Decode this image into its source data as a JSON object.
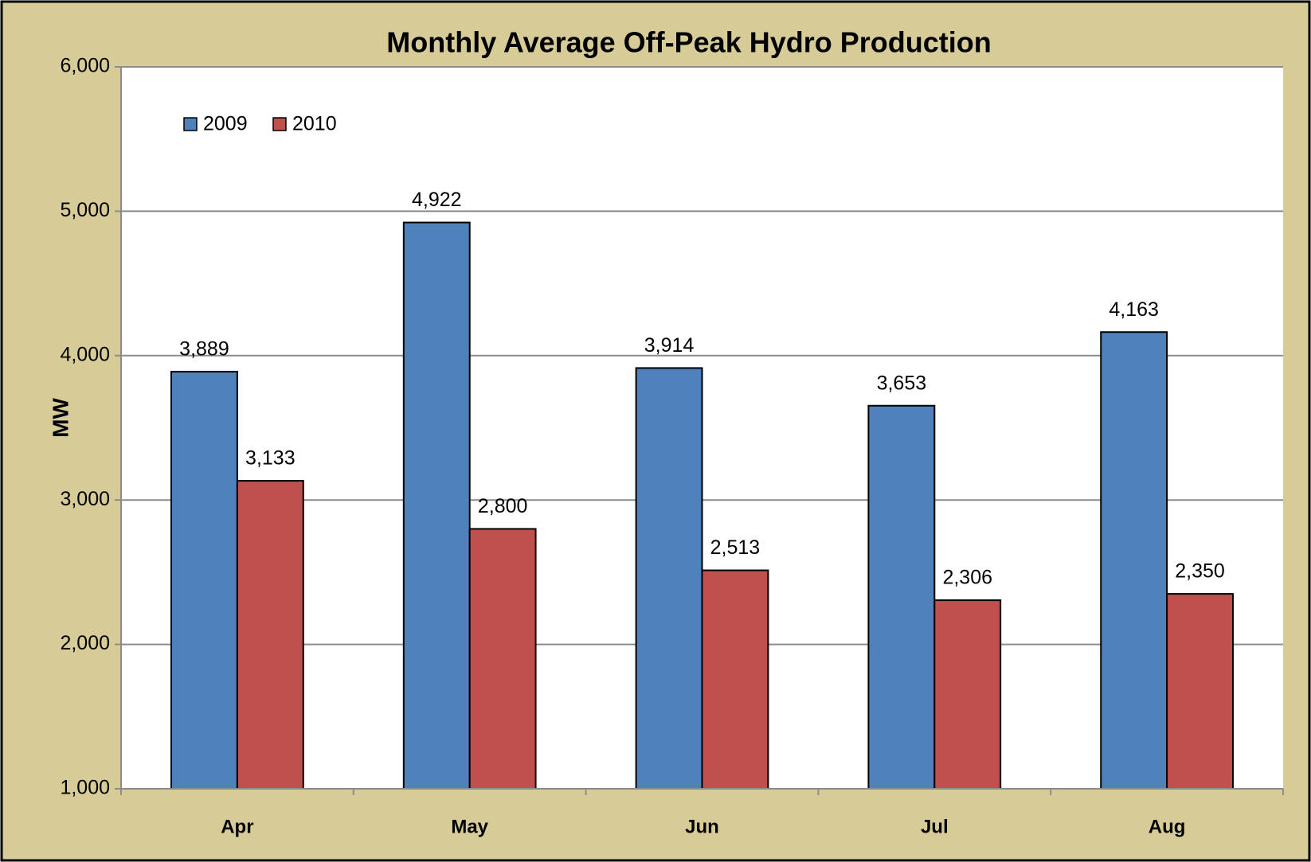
{
  "chart_data": {
    "type": "bar",
    "title": "Monthly Average Off-Peak Hydro Production",
    "y_label": "MW",
    "categories": [
      "Apr",
      "May",
      "Jun",
      "Jul",
      "Aug"
    ],
    "series": [
      {
        "name": "2009",
        "color": "#4f81bd",
        "values": [
          3889,
          4922,
          3914,
          3653,
          4163
        ],
        "value_labels": [
          "3,889",
          "4,922",
          "3,914",
          "3,653",
          "4,163"
        ]
      },
      {
        "name": "2010",
        "color": "#c0504d",
        "values": [
          3133,
          2800,
          2513,
          2306,
          2350
        ],
        "value_labels": [
          "3,133",
          "2,800",
          "2,513",
          "2,306",
          "2,350"
        ]
      }
    ],
    "ylim": [
      1000,
      6000
    ],
    "yticks": [
      {
        "value": 1000,
        "label": "1,000"
      },
      {
        "value": 2000,
        "label": "2,000"
      },
      {
        "value": 3000,
        "label": "3,000"
      },
      {
        "value": 4000,
        "label": "4,000"
      },
      {
        "value": 5000,
        "label": "5,000"
      },
      {
        "value": 6000,
        "label": "6,000"
      }
    ],
    "grid": true,
    "legend": "top-left"
  }
}
